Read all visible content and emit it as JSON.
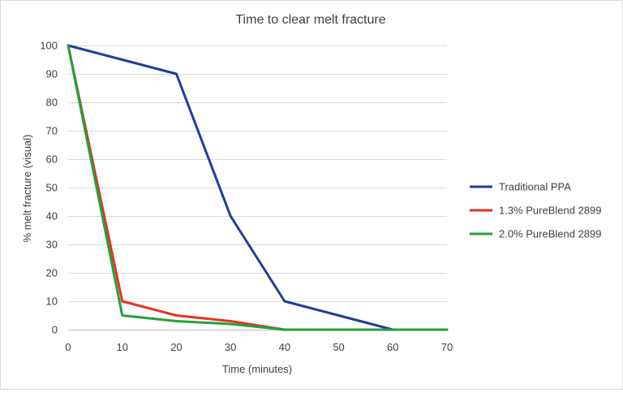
{
  "chart_data": {
    "type": "line",
    "title": "Time to clear melt fracture",
    "xlabel": "Time (minutes)",
    "ylabel": "% melt fracture (visual)",
    "xlim": [
      0,
      70
    ],
    "ylim": [
      0,
      100
    ],
    "xticks": [
      0,
      10,
      20,
      30,
      40,
      50,
      60,
      70
    ],
    "yticks": [
      0,
      10,
      20,
      30,
      40,
      50,
      60,
      70,
      80,
      90,
      100
    ],
    "grid": "horizontal",
    "legend_position": "right",
    "series": [
      {
        "name": "Traditional PPA",
        "color": "#1f3d99",
        "points": [
          [
            0,
            100
          ],
          [
            10,
            95
          ],
          [
            20,
            90
          ],
          [
            30,
            40
          ],
          [
            40,
            10
          ],
          [
            50,
            5
          ],
          [
            60,
            0
          ],
          [
            70,
            0
          ]
        ]
      },
      {
        "name": "1.3% PureBlend 2899",
        "color": "#e8311e",
        "points": [
          [
            0,
            100
          ],
          [
            10,
            10
          ],
          [
            20,
            5
          ],
          [
            30,
            3
          ],
          [
            40,
            0
          ],
          [
            50,
            0
          ],
          [
            60,
            0
          ],
          [
            70,
            0
          ]
        ]
      },
      {
        "name": "2.0% PureBlend 2899",
        "color": "#22a13a",
        "points": [
          [
            0,
            100
          ],
          [
            10,
            5
          ],
          [
            20,
            3
          ],
          [
            30,
            2
          ],
          [
            40,
            0
          ],
          [
            50,
            0
          ],
          [
            60,
            0
          ],
          [
            70,
            0
          ]
        ]
      }
    ]
  }
}
